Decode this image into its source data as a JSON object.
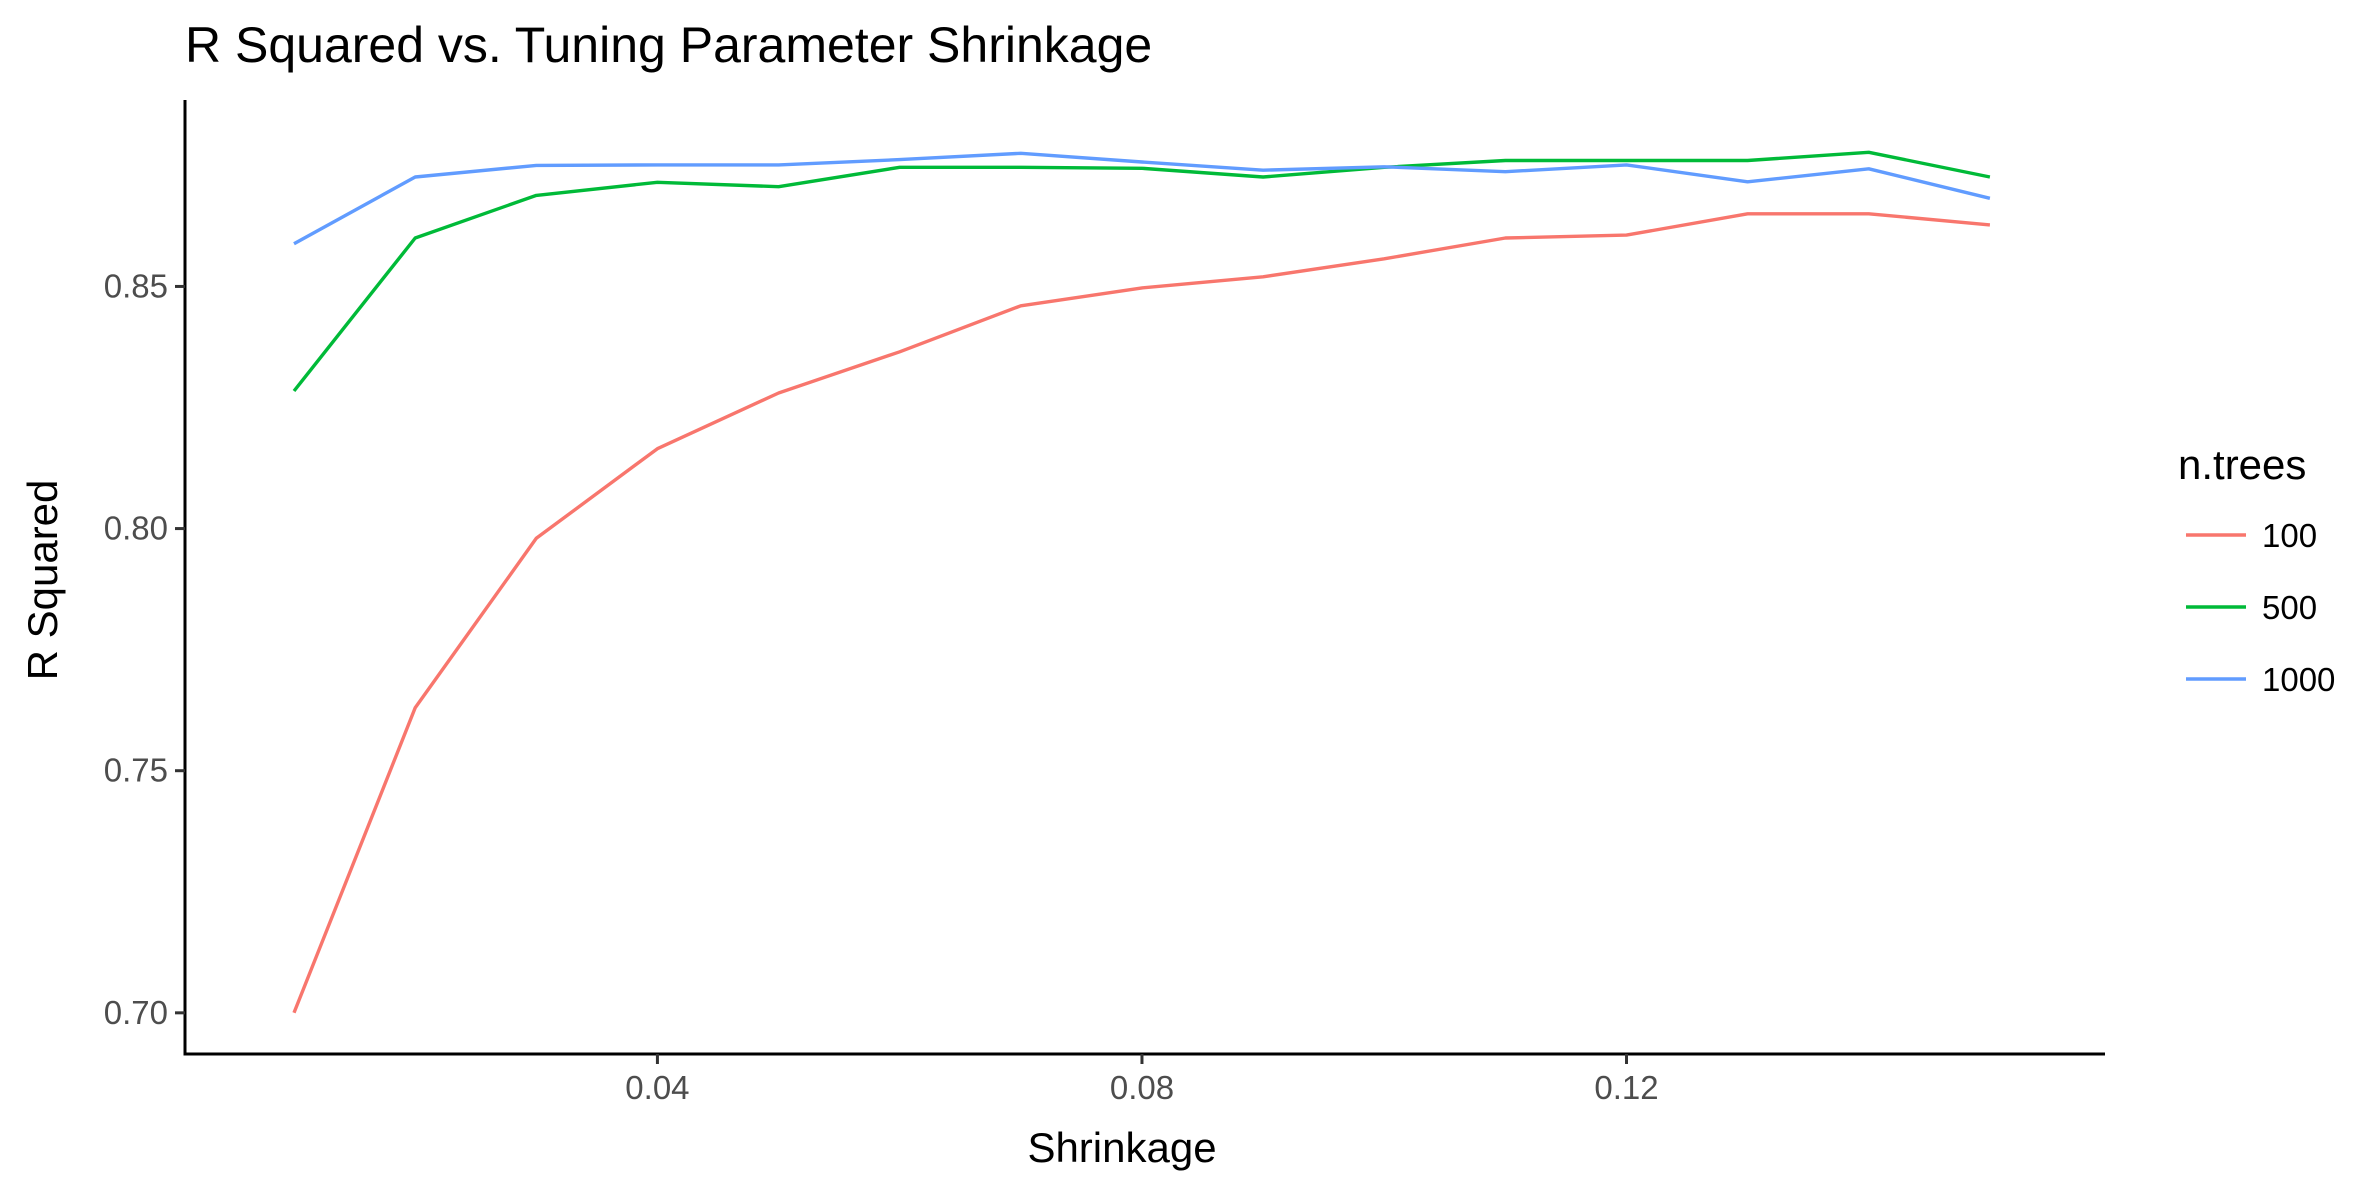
{
  "chart_data": {
    "type": "line",
    "title": "R Squared vs. Tuning Parameter Shrinkage",
    "xlabel": "Shrinkage",
    "ylabel": "R Squared",
    "xlim": [
      0.001,
      0.1595
    ],
    "ylim": [
      0.6915,
      0.8885
    ],
    "x_ticks": [
      {
        "value": 0.04,
        "label": "0.04"
      },
      {
        "value": 0.08,
        "label": "0.08"
      },
      {
        "value": 0.12,
        "label": "0.12"
      }
    ],
    "y_ticks": [
      {
        "value": 0.7,
        "label": "0.70"
      },
      {
        "value": 0.75,
        "label": "0.75"
      },
      {
        "value": 0.8,
        "label": "0.80"
      },
      {
        "value": 0.85,
        "label": "0.85"
      }
    ],
    "x": [
      0.01,
      0.02,
      0.03,
      0.04,
      0.05,
      0.06,
      0.07,
      0.08,
      0.09,
      0.1,
      0.11,
      0.12,
      0.13,
      0.14,
      0.15
    ],
    "grid": false,
    "legend": {
      "title": "n.trees",
      "position": "right"
    },
    "series": [
      {
        "name": "100",
        "color": "#F8766D",
        "values": [
          0.7,
          0.763,
          0.798,
          0.8165,
          0.828,
          0.8365,
          0.846,
          0.8497,
          0.852,
          0.8557,
          0.86,
          0.8606,
          0.865,
          0.865,
          0.8627
        ]
      },
      {
        "name": "500",
        "color": "#00BA38",
        "values": [
          0.8284,
          0.86,
          0.8688,
          0.8715,
          0.8706,
          0.8746,
          0.8746,
          0.8744,
          0.8726,
          0.8746,
          0.876,
          0.876,
          0.876,
          0.8777,
          0.8726
        ]
      },
      {
        "name": "1000",
        "color": "#619CFF",
        "values": [
          0.8588,
          0.8726,
          0.875,
          0.8751,
          0.8751,
          0.8762,
          0.8775,
          0.8757,
          0.874,
          0.8747,
          0.8737,
          0.8751,
          0.8716,
          0.8743,
          0.8682
        ]
      }
    ]
  }
}
